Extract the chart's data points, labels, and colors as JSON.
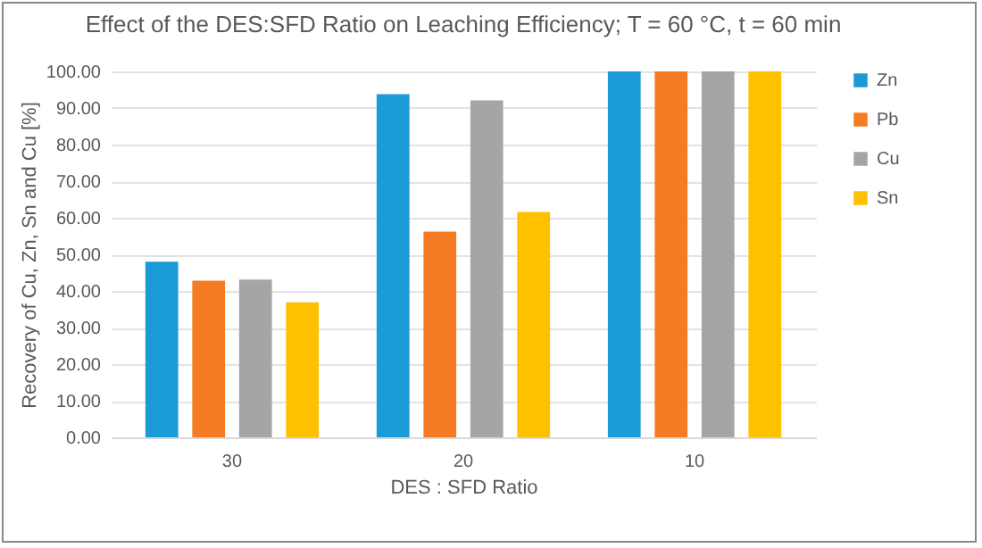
{
  "chart_data": {
    "type": "bar",
    "title": "Effect of the DES:SFD Ratio on Leaching Efficiency; T = 60 °C, t = 60 min",
    "xlabel": "DES : SFD Ratio",
    "ylabel": "Recovery of Cu, Zn, Sn and Cu [%]",
    "categories": [
      "30",
      "20",
      "10"
    ],
    "series": [
      {
        "name": "Zn",
        "color": "#1a9ad6",
        "values": [
          48.0,
          93.8,
          100
        ]
      },
      {
        "name": "Pb",
        "color": "#f57c22",
        "values": [
          42.8,
          56.2,
          100
        ]
      },
      {
        "name": "Cu",
        "color": "#a5a5a5",
        "values": [
          43.1,
          92.1,
          100
        ]
      },
      {
        "name": "Sn",
        "color": "#ffc000",
        "values": [
          36.9,
          61.6,
          100
        ]
      }
    ],
    "ylim": [
      0,
      100
    ],
    "yticks": [
      {
        "value": 0,
        "label": "0.00"
      },
      {
        "value": 10,
        "label": "10.00"
      },
      {
        "value": 20,
        "label": "20.00"
      },
      {
        "value": 30,
        "label": "30.00"
      },
      {
        "value": 40,
        "label": "40.00"
      },
      {
        "value": 50,
        "label": "50.00"
      },
      {
        "value": 60,
        "label": "60.00"
      },
      {
        "value": 70,
        "label": "70.00"
      },
      {
        "value": 80,
        "label": "80.00"
      },
      {
        "value": 90,
        "label": "90.00"
      },
      {
        "value": 100,
        "label": "100.00"
      }
    ],
    "grid": "y",
    "legend": "right"
  }
}
